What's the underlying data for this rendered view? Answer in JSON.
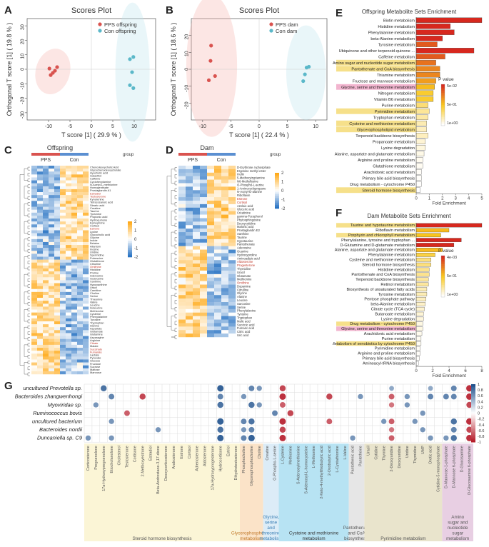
{
  "panels": {
    "A": {
      "label": "A",
      "chart_data": {
        "type": "scatter",
        "title": "Scores Plot",
        "xlabel": "T score [1] ( 29.9 % )",
        "ylabel": "Orthogonal T score [1] ( 19.8 % )",
        "xlim": [
          -15,
          15
        ],
        "ylim": [
          -35,
          35
        ],
        "xticks": [
          "-10",
          "-5",
          "0",
          "5",
          "10"
        ],
        "yticks": [
          "30",
          "20",
          "10",
          "0",
          "-10",
          "-20",
          "-30"
        ],
        "series": [
          {
            "name": "PPS offspring",
            "color": "#d9534f",
            "points": [
              [
                -9.5,
                -4
              ],
              [
                -8.5,
                -1
              ],
              [
                -9.8,
                0.5
              ],
              [
                -8,
                1.5
              ],
              [
                -9,
                -2.5
              ]
            ]
          },
          {
            "name": "Con offspring",
            "color": "#5bb8c9",
            "points": [
              [
                9,
                7
              ],
              [
                9.8,
                8.5
              ],
              [
                9.5,
                -2
              ],
              [
                9,
                -11
              ],
              [
                9.8,
                -13
              ]
            ]
          }
        ]
      }
    },
    "B": {
      "label": "B",
      "chart_data": {
        "type": "scatter",
        "title": "Scores Plot",
        "xlabel": "T score [1] ( 22.4 % )",
        "ylabel": "Orthogonal T score [1] ( 18.6 % )",
        "xlim": [
          -12,
          12
        ],
        "ylim": [
          -30,
          30
        ],
        "xticks": [
          "-10",
          "-5",
          "0",
          "5",
          "10"
        ],
        "yticks": [
          "20",
          "10",
          "0",
          "-10",
          "-20"
        ],
        "series": [
          {
            "name": "PPS dam",
            "color": "#d9534f",
            "points": [
              [
                -8.5,
                14
              ],
              [
                -8.6,
                5
              ],
              [
                -7.8,
                -4
              ],
              [
                -8.9,
                -6.5
              ]
            ]
          },
          {
            "name": "Con dam",
            "color": "#5bb8c9",
            "points": [
              [
                8.4,
                1
              ],
              [
                8.8,
                1.5
              ],
              [
                8.1,
                -3
              ],
              [
                7.8,
                -7
              ]
            ]
          }
        ]
      }
    },
    "C": {
      "label": "C",
      "title": "Offspring",
      "groups": [
        "PPS",
        "Con"
      ],
      "group_label": "group",
      "legend_ticks": [
        "2",
        "1",
        "0",
        "-1",
        "-2"
      ],
      "rows": [
        "Chenodeoxycholic Acid",
        "Glycochenodeoxycholate",
        "Hyocholic acid",
        "Galactitol",
        "Caffeine",
        "Cyclohexylamine",
        "N-Acetyl-L-methionine",
        "Homogentisate",
        "Prostaglandin A1",
        "Estradiol",
        "Testosterone",
        "Kynurenine",
        "Tetracosanoic acid",
        "Stearic acid",
        "Creatine",
        "Taurine",
        "Tyramine",
        "Propionic acid",
        "Hydroquinone",
        "Epinephrine",
        "Cortisol",
        "Estrone",
        "Lysine",
        "Glycocholic acid",
        "Glycine",
        "Indole",
        "Betaine",
        "Allantoin",
        "Inosine",
        "Uridine",
        "Spermidine",
        "Putrescine",
        "Glutathione",
        "Citrulline",
        "Ornithine",
        "Histidine",
        "Proline",
        "Adenosine",
        "Guanosine",
        "Xanthine",
        "Hypoxanthine",
        "Uracil",
        "Carnitine",
        "Choline",
        "Serine",
        "Threonine",
        "Valine",
        "Leucine",
        "Isoleucine",
        "Methionine",
        "Cysteine",
        "Phenylalanine",
        "Tyrosine",
        "Tryptophan",
        "Alanine",
        "Aspartate",
        "Glutamate",
        "Glutamine",
        "Asparagine",
        "Arginine",
        "Citrate",
        "Malate",
        "Succinate",
        "Fumarate",
        "Lactate",
        "Pyruvate",
        "Glucose",
        "Fructose",
        "Sucrose",
        "Maltose",
        "Mannose"
      ],
      "highlighted_rows": [
        9,
        10,
        21,
        34,
        60,
        62,
        63
      ]
    },
    "D": {
      "label": "D",
      "title": "Dam",
      "groups": [
        "PPS",
        "Con"
      ],
      "group_label": "group",
      "legend_ticks": [
        "2",
        "1",
        "0",
        "-1",
        "-2"
      ],
      "rows": [
        "D-Erythrose 4-phosphate",
        "Ergosine methyl ester",
        "Inulin",
        "5-Methoxytryptamine",
        "N6-Methyllysine",
        "O-Phospho-L-serine",
        "1-Aminocyclopropane",
        "N-Acetyl-D-alanine",
        "Riboflavin",
        "Estrone",
        "Cortisol",
        "Azelaic acid",
        "Glyceric acid",
        "Creatinine",
        "gamma-Tocopherol",
        "Phytosphingosine",
        "Deoxycytidine",
        "Malonic acid",
        "Prostaglandin E2",
        "Xanthine",
        "Taurine",
        "Hypotaurine",
        "Pantothenate",
        "Adenosine",
        "Guanine",
        "Hydroxyproline",
        "Aminoadipic acid",
        "Aldosterone",
        "Progesterone",
        "Thymidine",
        "Uracil",
        "Glutamate",
        "Methionine",
        "Ornithine",
        "Dopamine",
        "Citrulline",
        "Glycine",
        "Alanine",
        "Leucine",
        "Sarcosine",
        "Serine",
        "Phenylalanine",
        "Tyrosine",
        "Tryptophan",
        "Malic acid",
        "Succinic acid",
        "Fumaric acid",
        "Citric acid",
        "Uric acid"
      ],
      "highlighted_rows": [
        9,
        10,
        27,
        28,
        33
      ]
    },
    "E": {
      "label": "E",
      "chart_data": {
        "type": "bar",
        "title": "Offspring Metabolite Sets Enrichment",
        "xlabel": "Fold Enrichment",
        "xlim": [
          0,
          5
        ],
        "xticks": [
          "0",
          "1",
          "2",
          "3",
          "4",
          "5"
        ],
        "legend_title": "P value",
        "legend_ticks": [
          "5e-02",
          "5e-01",
          "1e+00"
        ],
        "categories": [
          "Biotin metabolism",
          "Histidine metabolism",
          "Phenylalanine metabolism",
          "beta-Alanine metabolism",
          "Tyrosine metabolism",
          "Ubiquinone and other terpenoid-quinone ...",
          "Caffeine metabolism",
          "Amino sugar and nucleotide sugar metabolism",
          "Pantothenate and CoA biosynthesis",
          "Thiamine metabolism",
          "Fructose and mannose metabolism",
          "Glycine, serine and threonine metabolism",
          "Nitrogen metabolism",
          "Vitamin B6 metabolism",
          "Purine metabolism",
          "Pyrimidine metabolism",
          "Tryptophan metabolism",
          "Cysteine and methionine metabolism",
          "Glycerophospholipid metabolism",
          "Terpenoid backbone biosynthesis",
          "Propanoate metabolism",
          "Lysine degradation",
          "Alanine, aspartate and glutamate metabolism",
          "Arginine and proline metabolism",
          "Glutathione metabolism",
          "Arachidonic acid metabolism",
          "Primary bile acid biosynthesis",
          "Drug metabolism - cytochrome P450",
          "Steroid hormone biosynthesis"
        ],
        "values": [
          5.0,
          2.6,
          2.9,
          2.0,
          1.6,
          4.4,
          2.2,
          1.5,
          1.8,
          1.8,
          1.5,
          1.4,
          1.3,
          1.3,
          0.9,
          1.0,
          0.9,
          0.8,
          0.8,
          0.9,
          0.7,
          0.7,
          0.6,
          0.5,
          0.5,
          0.4,
          0.4,
          0.4,
          0.3
        ],
        "pvalues": [
          0.05,
          0.05,
          0.05,
          0.05,
          0.08,
          0.05,
          0.08,
          0.1,
          0.12,
          0.12,
          0.15,
          0.2,
          0.25,
          0.25,
          0.4,
          0.5,
          0.55,
          0.6,
          0.65,
          0.65,
          0.75,
          0.8,
          0.85,
          0.9,
          0.92,
          0.95,
          0.97,
          0.98,
          1.0
        ],
        "highlighted": [
          7,
          8,
          11,
          15,
          17,
          18,
          28
        ],
        "highlight_colors": {
          "7": "#f6e08a",
          "8": "#f6e08a",
          "11": "#f2b5cf",
          "15": "#f6e08a",
          "17": "#f6e08a",
          "18": "#f6e08a",
          "28": "#f6e08a"
        }
      }
    },
    "F": {
      "label": "F",
      "chart_data": {
        "type": "bar",
        "title": "Dam Metabolite Sets Enrichment",
        "xlabel": "Fold Enrichment",
        "xlim": [
          0,
          8
        ],
        "xticks": [
          "0",
          "2",
          "4",
          "6",
          "8"
        ],
        "legend_title": "P value",
        "legend_ticks": [
          "4e-03",
          "5e-01",
          "1e+00"
        ],
        "categories": [
          "Taurine and hypotaurine metabolism",
          "Riboflavin metabolism",
          "Porphyrin and chlorophyll metabolism",
          "Phenylalanine, tyrosine and tryptophan ...",
          "D-Glutamine and D-glutamate metabolism",
          "Alanine, aspartate and glutamate metabolism",
          "Phenylalanine metabolism",
          "Cysteine and methionine metabolism",
          "Steroid hormone biosynthesis",
          "Histidine metabolism",
          "Pantothenate and CoA biosynthesis",
          "Terpenoid backbone biosynthesis",
          "Retinol metabolism",
          "Biosynthesis of unsaturated fatty acids",
          "Tyrosine metabolism",
          "Pentose phosphate pathway",
          "beta-Alanine metabolism",
          "Citrate cycle (TCA cycle)",
          "Butanoate metabolism",
          "Lysine degradation",
          "Drug metabolism - cytochrome P450",
          "Glycine, serine and threonine metabolism",
          "Arachidonic acid metabolism",
          "Purine metabolism",
          "Metabolism of xenobiotics by cytochrome P450",
          "Pyrimidine metabolism",
          "Arginine and proline metabolism",
          "Primary bile acid biosynthesis",
          "Aminoacyl-tRNA biosynthesis"
        ],
        "values": [
          8.0,
          4.0,
          3.0,
          5.5,
          4.6,
          3.2,
          2.3,
          1.8,
          1.8,
          1.6,
          1.6,
          1.5,
          1.5,
          1.3,
          1.3,
          1.2,
          1.1,
          1.0,
          0.9,
          0.9,
          0.8,
          0.8,
          0.7,
          0.6,
          0.6,
          0.5,
          0.5,
          0.4,
          0.3
        ],
        "pvalues": [
          0.004,
          0.05,
          0.06,
          0.004,
          0.004,
          0.05,
          0.1,
          0.2,
          0.2,
          0.25,
          0.25,
          0.3,
          0.3,
          0.4,
          0.4,
          0.45,
          0.5,
          0.55,
          0.6,
          0.65,
          0.7,
          0.7,
          0.8,
          0.85,
          0.85,
          0.9,
          0.92,
          0.95,
          1.0
        ],
        "highlighted": [
          0,
          2,
          20,
          21,
          24
        ],
        "highlight_colors": {
          "0": "#f6e08a",
          "2": "#f6e08a",
          "20": "#f6e08a",
          "21": "#f2b5cf",
          "24": "#f6e08a"
        }
      }
    },
    "G": {
      "label": "G",
      "bacteria": [
        "uncultured Prevotella sp.",
        "Bacteroides zhangwenhongi",
        "Myoviridae sp.",
        "Ruminococcus bovis",
        "uncultured bacterium",
        "Bacteroides nordii",
        "Duncaniella sp. C9"
      ],
      "metabolites": [
        "Corticosterone",
        "Pregnenolone",
        "17a-Hydroxypregnenolone",
        "Etiocholanolone",
        "Cholesterol",
        "Testosterone",
        "Cortisone",
        "2-Methoxyestrone",
        "Estradiol",
        "Beta-Androstane-3,17-dione",
        "Deoxycorticosterone",
        "Androsterone",
        "Estrone",
        "Cortisol",
        "Adrenosterone",
        "Aldosterone",
        "17a-Hydroxyprogesterone",
        "Hydrocortisone",
        "Estriol",
        "Dihydrotestosterone",
        "Phosphocholine",
        "Glycerophosphocholine",
        "Choline",
        "Creatine",
        "O-Phospho-L-serine",
        "L-Cysteine",
        "Methionine",
        "S-Adenosylmethionine",
        "S-Adenosyl-L-homocysteine",
        "L-Methionine",
        "2-Keto-4-methylthiobutyric acid",
        "2-Oxobutyric acid",
        "L-Cystathionine",
        "L-Valine",
        "Pantothenic acid",
        "Pantetheine",
        "Uracil",
        "Cytidine",
        "Thymine",
        "2-Deoxyuridine",
        "Deoxyuridine",
        "Uridine",
        "Thymidine",
        "UMP",
        "Orotic acid",
        "Cytidine-5-monophosphate",
        "D-Mannose-1-phosphate",
        "D-Mannose 6-phosphate",
        "D-Glucosamine",
        "D-Glucosamine 6-phosphate"
      ],
      "color_ticks": [
        "1",
        "0.8",
        "0.6",
        "0.4",
        "0.2",
        "0",
        "-0.2",
        "-0.4",
        "-0.6",
        "-0.8",
        "-1"
      ],
      "categories": [
        {
          "name": "Steroid hormone biosynthesis",
          "start": 0,
          "end": 19,
          "color": "#fbf5d6",
          "text_color": "#555"
        },
        {
          "name": "Glycerophospholipid metabolism",
          "start": 20,
          "end": 22,
          "color": "#fbe3c8",
          "text_color": "#c27a2c"
        },
        {
          "name": "Glycine, serine and threonine metabolism",
          "start": 23,
          "end": 24,
          "color": "#dcecf7",
          "text_color": "#3a7fb5"
        },
        {
          "name": "Cysteine and methionine metabolism",
          "start": 25,
          "end": 33,
          "color": "#b7e3f3",
          "text_color": "#333"
        },
        {
          "name": "Pantothenate and CoA biosynthesis",
          "start": 34,
          "end": 35,
          "color": "#e6e6e6",
          "text_color": "#555"
        },
        {
          "name": "Pyrimidine metabolism",
          "start": 36,
          "end": 45,
          "color": "#e9e4cc",
          "text_color": "#555"
        },
        {
          "name": "Amino sugar and nucleotide sugar metabolism",
          "start": 46,
          "end": 49,
          "color": "#e8cfe3",
          "text_color": "#555"
        }
      ],
      "correlations": [
        [
          0,
          2,
          0.8
        ],
        [
          0,
          17,
          0.9
        ],
        [
          0,
          21,
          0.7
        ],
        [
          0,
          22,
          0.6
        ],
        [
          0,
          25,
          -0.8
        ],
        [
          0,
          39,
          0.5
        ],
        [
          0,
          44,
          0.5
        ],
        [
          0,
          47,
          0.7
        ],
        [
          0,
          49,
          -0.9
        ],
        [
          1,
          3,
          0.7
        ],
        [
          1,
          7,
          -0.8
        ],
        [
          1,
          17,
          0.7
        ],
        [
          1,
          20,
          0.6
        ],
        [
          1,
          25,
          -0.9
        ],
        [
          1,
          31,
          -0.8
        ],
        [
          1,
          35,
          0.6
        ],
        [
          1,
          39,
          -0.7
        ],
        [
          1,
          41,
          0.6
        ],
        [
          1,
          44,
          0.7
        ],
        [
          1,
          46,
          0.7
        ],
        [
          1,
          47,
          0.7
        ],
        [
          1,
          49,
          -0.9
        ],
        [
          2,
          1,
          0.6
        ],
        [
          2,
          17,
          0.8
        ],
        [
          2,
          21,
          0.8
        ],
        [
          2,
          22,
          0.6
        ],
        [
          2,
          25,
          -0.7
        ],
        [
          2,
          39,
          -0.6
        ],
        [
          2,
          41,
          0.6
        ],
        [
          2,
          49,
          -0.8
        ],
        [
          3,
          5,
          -0.7
        ],
        [
          3,
          24,
          0.7
        ],
        [
          3,
          26,
          -0.8
        ],
        [
          3,
          43,
          0.6
        ],
        [
          4,
          3,
          0.6
        ],
        [
          4,
          17,
          0.9
        ],
        [
          4,
          20,
          0.7
        ],
        [
          4,
          21,
          0.8
        ],
        [
          4,
          25,
          -0.9
        ],
        [
          4,
          31,
          -0.7
        ],
        [
          4,
          38,
          0.6
        ],
        [
          4,
          39,
          -0.7
        ],
        [
          4,
          42,
          0.6
        ],
        [
          4,
          47,
          0.8
        ],
        [
          4,
          49,
          -0.9
        ],
        [
          5,
          9,
          0.6
        ],
        [
          5,
          17,
          0.8
        ],
        [
          5,
          20,
          0.6
        ],
        [
          5,
          21,
          0.7
        ],
        [
          5,
          25,
          -0.8
        ],
        [
          5,
          39,
          -0.6
        ],
        [
          5,
          43,
          0.6
        ],
        [
          5,
          47,
          0.7
        ],
        [
          5,
          49,
          -0.8
        ],
        [
          6,
          0,
          0.6
        ],
        [
          6,
          3,
          0.6
        ],
        [
          6,
          17,
          0.9
        ],
        [
          6,
          20,
          0.7
        ],
        [
          6,
          21,
          0.9
        ],
        [
          6,
          25,
          -0.9
        ],
        [
          6,
          34,
          0.6
        ],
        [
          6,
          39,
          -0.7
        ],
        [
          6,
          44,
          0.6
        ],
        [
          6,
          46,
          0.6
        ],
        [
          6,
          47,
          0.8
        ],
        [
          6,
          49,
          -0.9
        ]
      ]
    }
  }
}
